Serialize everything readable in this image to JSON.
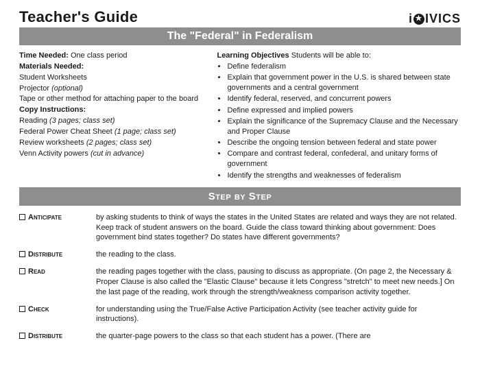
{
  "header": {
    "title": "Teacher's Guide",
    "logo_prefix": "i",
    "logo_suffix": "IVICS",
    "logo_star_glyph": "★"
  },
  "banner1": "The \"Federal\" in Federalism",
  "left": {
    "time_label": "Time Needed:",
    "time_value": "One class period",
    "materials_label": "Materials Needed:",
    "materials_1": "Student Worksheets",
    "materials_2a": "Projector ",
    "materials_2b": "(optional)",
    "materials_3": "Tape or other method for attaching paper to the board",
    "copy_label": "Copy Instructions:",
    "copy_1a": "Reading ",
    "copy_1b": "(3 pages; class set)",
    "copy_2a": "Federal Power Cheat Sheet ",
    "copy_2b": "(1 page; class set)",
    "copy_3a": "Review worksheets ",
    "copy_3b": "(2 pages; class set)",
    "copy_4a": "Venn Activity powers ",
    "copy_4b": "(cut in advance)"
  },
  "right": {
    "obj_label": "Learning Objectives",
    "obj_intro": "Students will be able to:",
    "items": {
      "0": "Define federalism",
      "1": "Explain that government power in the U.S. is shared between state governments and a central government",
      "2": "Identify federal, reserved, and concurrent powers",
      "3": "Define expressed and implied powers",
      "4": "Explain the significance of the Supremacy Clause and the Necessary and Proper Clause",
      "5": "Describe the ongoing tension between federal and state power",
      "6": "Compare and contrast federal, confederal, and unitary forms of government",
      "7": "Identify the strengths and weaknesses of federalism"
    }
  },
  "banner2": "Step by Step",
  "steps": {
    "0": {
      "label": "Anticipate",
      "desc": "by asking students  to think of ways the states in the United States are related and ways they are not related. Keep track of student answers on the board. Guide the class toward thinking about government: Does government bind states together? Do states have different governments?"
    },
    "1": {
      "label": "Distribute",
      "desc": "the reading to the class."
    },
    "2": {
      "label": "Read",
      "desc": "the reading pages together with the class, pausing to discuss as appropriate. (On page 2, the Necessary & Proper Clause is also called the \"Elastic Clause\" because it lets Congress \"stretch\" to meet new needs.] On the last page of the reading, work through the strength/weakness comparison activity together."
    },
    "3": {
      "label": "Check",
      "desc": "for understanding using the True/False Active Participation Activity (see teacher activity guide for instructions)."
    },
    "4": {
      "label": "Distribute",
      "desc": "the quarter-page powers to the class so that each student has a power. (There are"
    }
  }
}
